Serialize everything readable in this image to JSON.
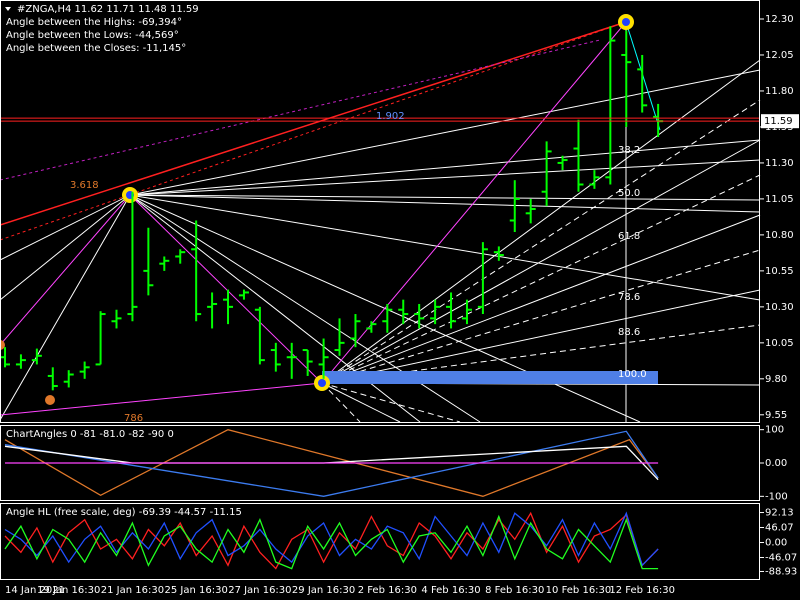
{
  "chart_data": [
    {
      "type": "ohlc",
      "header": "#ZNGA,H4  11.62 11.71 11.48 11.59",
      "info_lines": [
        "Angle between the Highs: -69,394°",
        "Angle between the Lows: -44,569°",
        "Angle between the Closes: -11,145°"
      ],
      "color": "#00ff00",
      "last_price": 11.59,
      "ylim": [
        9.5,
        12.425
      ],
      "yticks": [
        {
          "value": 12.3,
          "label": "12.30"
        },
        12.05,
        {
          "value": 11.8,
          "label": "11.80"
        },
        11.55,
        {
          "value": 11.3,
          "label": "11.30"
        },
        11.05,
        {
          "value": 10.8,
          "label": "10.80"
        },
        10.55,
        {
          "value": 10.3,
          "label": "10.30"
        },
        10.05,
        {
          "value": 9.8,
          "label": "9.80"
        },
        9.55
      ],
      "categories": [
        "14 Jan 2021",
        null,
        null,
        null,
        "19 Jan 16:30",
        null,
        null,
        null,
        "21 Jan 16:30",
        null,
        null,
        null,
        "25 Jan 16:30",
        null,
        null,
        null,
        "27 Jan 16:30",
        null,
        null,
        null,
        "29 Jan 16:30",
        null,
        null,
        null,
        "2 Feb 16:30",
        null,
        null,
        null,
        "4 Feb 16:30",
        null,
        null,
        null,
        "8 Feb 16:30",
        null,
        null,
        null,
        "10 Feb 16:30",
        null,
        null,
        null,
        "12 Feb 16:30",
        null
      ],
      "open": [
        9.95,
        9.9,
        9.93,
        9.82,
        9.78,
        9.85,
        9.9,
        10.2,
        10.25,
        10.55,
        10.6,
        10.65,
        10.7,
        10.3,
        10.35,
        10.38,
        10.28,
        10.0,
        9.95,
        10.0,
        9.9,
        10.0,
        10.08,
        10.15,
        10.2,
        10.28,
        10.25,
        10.22,
        10.3,
        10.22,
        10.3,
        10.68,
        10.9,
        10.95,
        11.1,
        11.3,
        11.4,
        11.15,
        11.2,
        12.05,
        11.95,
        11.62
      ],
      "high": [
        10.02,
        9.97,
        10.01,
        9.88,
        9.86,
        9.92,
        10.27,
        10.28,
        11.1,
        10.85,
        10.65,
        10.7,
        10.9,
        10.4,
        10.42,
        10.42,
        10.3,
        10.05,
        10.05,
        10.0,
        10.08,
        10.22,
        10.25,
        10.2,
        10.32,
        10.35,
        10.32,
        10.35,
        10.4,
        10.35,
        10.75,
        10.72,
        11.18,
        11.05,
        11.45,
        11.35,
        11.6,
        11.25,
        12.25,
        12.22,
        12.05,
        11.71
      ],
      "low": [
        9.88,
        9.87,
        9.9,
        9.72,
        9.74,
        9.8,
        9.9,
        10.15,
        10.2,
        10.38,
        10.55,
        10.6,
        10.2,
        10.15,
        10.18,
        10.35,
        9.9,
        9.85,
        9.8,
        9.82,
        9.8,
        9.96,
        10.02,
        10.12,
        10.12,
        10.18,
        10.15,
        10.18,
        10.15,
        10.18,
        10.25,
        10.62,
        10.82,
        10.88,
        11.0,
        11.25,
        11.1,
        11.12,
        11.15,
        11.55,
        11.65,
        11.48
      ],
      "close": [
        9.9,
        9.93,
        9.96,
        9.75,
        9.83,
        9.88,
        10.25,
        10.22,
        10.3,
        10.45,
        10.62,
        10.68,
        10.25,
        10.32,
        10.3,
        10.4,
        9.93,
        9.9,
        9.95,
        9.92,
        9.95,
        10.05,
        10.2,
        10.18,
        10.28,
        10.25,
        10.22,
        10.3,
        10.2,
        10.28,
        10.7,
        10.66,
        11.05,
        10.98,
        11.38,
        11.32,
        11.15,
        11.2,
        12.15,
        12.0,
        11.7,
        11.59
      ],
      "annotations": [
        "1.902",
        "3.618",
        "786",
        "38.2",
        "50.0",
        "61.8",
        "78.6",
        "88.6",
        "100.0"
      ]
    },
    {
      "type": "line",
      "title": "ChartAngles 0 -81 -81.0 -82 -90 0",
      "ylim": [
        -105,
        105
      ],
      "yticks": [
        100,
        {
          "value": 0,
          "label": "0.00"
        },
        -100
      ],
      "series": [
        {
          "color": "#e0782a",
          "x": [
            0,
            6,
            14,
            30,
            39.2,
            41
          ],
          "values": [
            70,
            -97,
            100,
            -100,
            70,
            -45
          ]
        },
        {
          "color": "#3c7cf0",
          "x": [
            0,
            20,
            39,
            41
          ],
          "values": [
            55,
            -100,
            95,
            -45
          ]
        },
        {
          "color": "#ffffff",
          "x": [
            0,
            8,
            20,
            39,
            41
          ],
          "values": [
            50,
            0,
            0,
            50,
            -50
          ]
        },
        {
          "color": "#ff44ff",
          "x": [
            0,
            41
          ],
          "values": [
            0,
            0
          ]
        }
      ]
    },
    {
      "type": "line",
      "title": "Angle HL (free scale, deg) -69.39 -44.57 -11.15",
      "ylim": [
        -109,
        112.2
      ],
      "yticks": [
        92.13,
        46.07,
        {
          "value": 0,
          "label": "0.00"
        },
        -46.07,
        -88.93
      ],
      "series": [
        {
          "color": "#ff2020",
          "values": [
            20,
            -30,
            45,
            -60,
            30,
            70,
            -20,
            10,
            -50,
            40,
            -10,
            60,
            -40,
            20,
            -70,
            50,
            -30,
            -80,
            10,
            40,
            -60,
            30,
            -20,
            80,
            -10,
            -40,
            60,
            20,
            -50,
            30,
            -20,
            70,
            10,
            90,
            -30,
            50,
            -60,
            20,
            40,
            85,
            -70,
            -20
          ]
        },
        {
          "color": "#2050ff",
          "values": [
            40,
            10,
            -40,
            20,
            -60,
            10,
            50,
            -30,
            30,
            -20,
            60,
            -50,
            30,
            70,
            -40,
            -10,
            40,
            -20,
            -60,
            20,
            60,
            -40,
            10,
            -20,
            50,
            30,
            -50,
            80,
            20,
            -40,
            60,
            -30,
            90,
            50,
            -10,
            70,
            -40,
            60,
            -20,
            90,
            -70,
            -20
          ]
        },
        {
          "color": "#20ff20",
          "values": [
            -20,
            50,
            -50,
            40,
            10,
            -60,
            30,
            -40,
            60,
            -70,
            20,
            50,
            -20,
            -60,
            40,
            -30,
            70,
            -60,
            -80,
            50,
            -20,
            60,
            -40,
            10,
            40,
            -60,
            20,
            30,
            -30,
            50,
            -40,
            80,
            -50,
            60,
            -20,
            -50,
            40,
            -10,
            -60,
            70,
            -80,
            -80
          ]
        }
      ]
    }
  ]
}
